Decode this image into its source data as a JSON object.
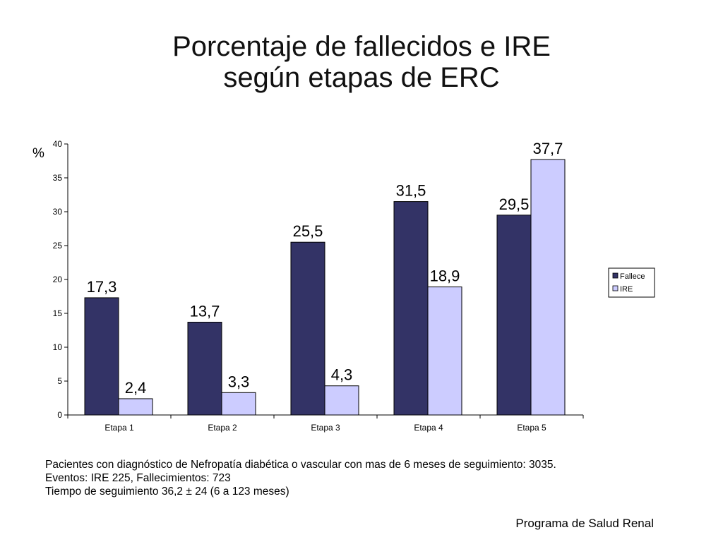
{
  "slide": {
    "title_line1": "Porcentaje de fallecidos e IRE",
    "title_line2": "según etapas de ERC",
    "notes": [
      "Pacientes con diagnóstico de Nefropatía diabética o vascular con mas de 6 meses de seguimiento: 3035.",
      "Eventos: IRE 225, Fallecimientos: 723",
      "Tiempo de seguimiento 36,2 ± 24 (6 a 123 meses)"
    ],
    "footer": "Programa de Salud Renal"
  },
  "chart_data": {
    "type": "bar",
    "title": "Porcentaje de fallecidos e IRE según etapas de ERC",
    "ylabel": "%",
    "xlabel": "",
    "categories": [
      "Etapa 1",
      "Etapa 2",
      "Etapa 3",
      "Etapa 4",
      "Etapa 5"
    ],
    "series": [
      {
        "name": "Fallece",
        "color": "#333366",
        "values": [
          17.3,
          13.7,
          25.5,
          31.5,
          29.5
        ],
        "labels": [
          "17,3",
          "13,7",
          "25,5",
          "31,5",
          "29,5"
        ]
      },
      {
        "name": "IRE",
        "color": "#ccccff",
        "values": [
          2.4,
          3.3,
          4.3,
          18.9,
          37.7
        ],
        "labels": [
          "2,4",
          "3,3",
          "4,3",
          "18,9",
          "37,7"
        ]
      }
    ],
    "ylim": [
      0,
      40
    ],
    "yticks": [
      0,
      5,
      10,
      15,
      20,
      25,
      30,
      35,
      40
    ],
    "grid": false,
    "legend": "right"
  }
}
